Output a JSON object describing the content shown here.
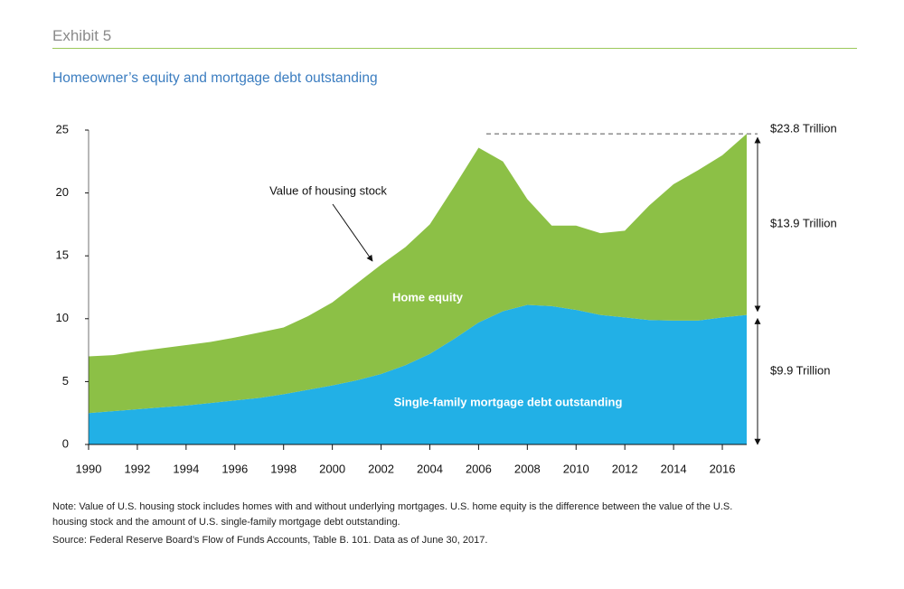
{
  "header": "Exhibit 5",
  "chart_data": {
    "type": "stacked-area",
    "title": "Homeowner’s equity and mortgage debt outstanding",
    "x": [
      1990,
      1991,
      1992,
      1993,
      1994,
      1995,
      1996,
      1997,
      1998,
      1999,
      2000,
      2001,
      2002,
      2003,
      2004,
      2005,
      2006,
      2007,
      2008,
      2009,
      2010,
      2011,
      2012,
      2013,
      2014,
      2015,
      2016,
      2017
    ],
    "series": [
      {
        "name": "Single-family mortgage debt outstanding",
        "color": "#22b0e6",
        "values": [
          2.5,
          2.65,
          2.8,
          2.95,
          3.1,
          3.3,
          3.5,
          3.7,
          4.0,
          4.35,
          4.7,
          5.1,
          5.6,
          6.3,
          7.2,
          8.4,
          9.7,
          10.6,
          11.1,
          11.0,
          10.7,
          10.3,
          10.1,
          9.9,
          9.85,
          9.85,
          10.1,
          10.3
        ]
      },
      {
        "name": "Home equity",
        "color": "#8cc046",
        "values": [
          4.5,
          4.45,
          4.6,
          4.7,
          4.8,
          4.85,
          5.0,
          5.2,
          5.3,
          5.85,
          6.6,
          7.7,
          8.7,
          9.4,
          10.3,
          12.1,
          13.9,
          11.9,
          8.4,
          6.4,
          6.7,
          6.5,
          6.9,
          9.1,
          10.85,
          11.95,
          12.9,
          14.4
        ]
      }
    ],
    "annotations": [
      "Value of housing stock",
      "$23.8 Trillion",
      "$13.9 Trillion",
      "$9.9 Trillion"
    ],
    "xlim": [
      1990,
      2017
    ],
    "xticks": [
      1990,
      1992,
      1994,
      1996,
      1998,
      2000,
      2002,
      2004,
      2006,
      2008,
      2010,
      2012,
      2014,
      2016
    ],
    "ylim": [
      0,
      25
    ],
    "yticks": [
      0,
      5,
      10,
      15,
      20,
      25
    ]
  },
  "note": "Note: Value of U.S. housing stock includes homes with and without underlying mortgages. U.S. home equity is the difference between the value of the U.S. housing stock and the amount of U.S. single-family mortgage debt outstanding.",
  "source": "Source: Federal Reserve Board’s Flow of Funds Accounts, Table B. 101. Data as of June 30, 2017."
}
